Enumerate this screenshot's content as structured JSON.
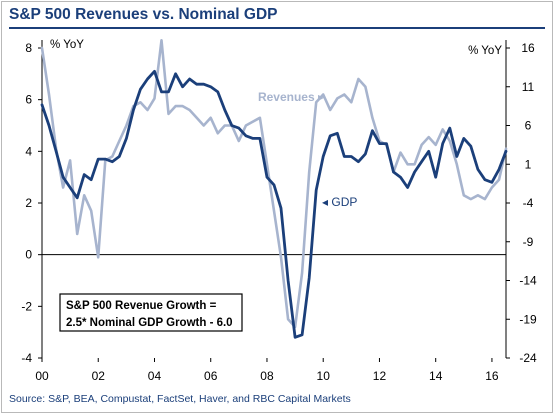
{
  "title": "S&P 500 Revenues vs. Nominal GDP",
  "source": "Source: S&P, BEA, Compustat, FactSet, Haver, and RBC Capital Markets",
  "chart_data": {
    "type": "line",
    "left_axis": {
      "label": "% YoY",
      "ticks": [
        "8",
        "6",
        "4",
        "2",
        "0",
        "-2",
        "-4"
      ],
      "range": [
        -4,
        8
      ]
    },
    "right_axis": {
      "label": "% YoY",
      "ticks": [
        "16",
        "11",
        "6",
        "1",
        "-4",
        "-9",
        "-14",
        "-19",
        "-24"
      ],
      "range": [
        -24,
        16
      ]
    },
    "x_ticks": [
      "00",
      "02",
      "04",
      "06",
      "08",
      "10",
      "12",
      "14",
      "16"
    ],
    "x_range": [
      2000,
      2016.5
    ],
    "series": [
      {
        "name": "GDP",
        "axis": "left",
        "color": "#1b3f7a",
        "x": [
          2000.0,
          2000.25,
          2000.5,
          2000.75,
          2001.0,
          2001.25,
          2001.5,
          2001.75,
          2002.0,
          2002.25,
          2002.5,
          2002.75,
          2003.0,
          2003.25,
          2003.5,
          2003.75,
          2004.0,
          2004.25,
          2004.5,
          2004.75,
          2005.0,
          2005.25,
          2005.5,
          2005.75,
          2006.0,
          2006.25,
          2006.5,
          2006.75,
          2007.0,
          2007.25,
          2007.5,
          2007.75,
          2008.0,
          2008.25,
          2008.5,
          2008.75,
          2009.0,
          2009.25,
          2009.5,
          2009.75,
          2010.0,
          2010.25,
          2010.5,
          2010.75,
          2011.0,
          2011.25,
          2011.5,
          2011.75,
          2012.0,
          2012.25,
          2012.5,
          2012.75,
          2013.0,
          2013.25,
          2013.5,
          2013.75,
          2014.0,
          2014.25,
          2014.5,
          2014.75,
          2015.0,
          2015.25,
          2015.5,
          2015.75,
          2016.0,
          2016.25,
          2016.5
        ],
        "values": [
          5.8,
          5.0,
          4.0,
          3.0,
          2.6,
          2.2,
          3.1,
          2.9,
          3.7,
          3.7,
          3.6,
          3.8,
          4.5,
          5.6,
          6.4,
          6.8,
          7.1,
          6.3,
          6.3,
          7.0,
          6.5,
          6.8,
          6.6,
          6.6,
          6.5,
          6.3,
          5.6,
          5.0,
          4.9,
          4.6,
          4.5,
          4.5,
          3.0,
          2.7,
          1.8,
          -1.0,
          -3.2,
          -3.1,
          -0.9,
          2.5,
          3.8,
          4.6,
          4.7,
          3.8,
          3.8,
          3.6,
          3.9,
          4.8,
          4.3,
          4.3,
          3.2,
          3.0,
          2.6,
          3.2,
          3.6,
          4.0,
          3.0,
          4.3,
          4.9,
          3.8,
          4.5,
          4.2,
          3.3,
          2.9,
          2.8,
          3.3,
          4.0
        ]
      },
      {
        "name": "Revenues",
        "axis": "right",
        "color": "#a7b4ce",
        "x": [
          2000.0,
          2000.25,
          2000.5,
          2000.75,
          2001.0,
          2001.25,
          2001.5,
          2001.75,
          2002.0,
          2002.25,
          2002.5,
          2002.75,
          2003.0,
          2003.25,
          2003.5,
          2003.75,
          2004.0,
          2004.25,
          2004.5,
          2004.75,
          2005.0,
          2005.25,
          2005.5,
          2005.75,
          2006.0,
          2006.25,
          2006.5,
          2006.75,
          2007.0,
          2007.25,
          2007.5,
          2007.75,
          2008.0,
          2008.25,
          2008.5,
          2008.75,
          2009.0,
          2009.25,
          2009.5,
          2009.75,
          2010.0,
          2010.25,
          2010.5,
          2010.75,
          2011.0,
          2011.25,
          2011.5,
          2011.75,
          2012.0,
          2012.25,
          2012.5,
          2012.75,
          2013.0,
          2013.25,
          2013.5,
          2013.75,
          2014.0,
          2014.25,
          2014.5,
          2014.75,
          2015.0,
          2015.25,
          2015.5,
          2015.75,
          2016.0,
          2016.25,
          2016.5
        ],
        "values": [
          16.0,
          10.0,
          3.0,
          -2.0,
          1.5,
          -8.0,
          -3.0,
          -5.0,
          -11.0,
          1.5,
          2.0,
          4.0,
          6.0,
          8.5,
          9.0,
          8.0,
          9.5,
          17.0,
          7.5,
          8.5,
          8.5,
          8.0,
          7.0,
          6.0,
          7.0,
          5.0,
          6.0,
          6.0,
          4.0,
          6.0,
          6.5,
          7.0,
          1.0,
          -5.0,
          -11.0,
          -19.0,
          -20.0,
          -13.0,
          0.0,
          9.0,
          10.0,
          8.0,
          9.5,
          10.0,
          9.0,
          12.0,
          11.0,
          7.0,
          4.0,
          3.5,
          0.0,
          2.5,
          1.0,
          1.0,
          3.5,
          4.5,
          3.5,
          5.5,
          4.0,
          1.0,
          -3.0,
          -3.5,
          -3.0,
          -3.5,
          -2.0,
          -1.0,
          3.0
        ]
      }
    ],
    "annotations": [
      {
        "text": "Revenues ▸",
        "series": "Revenues"
      },
      {
        "text": "◂ GDP",
        "series": "GDP"
      }
    ],
    "box_text": [
      "S&P 500 Revenue Growth =",
      "2.5* Nominal GDP Growth - 6.0"
    ],
    "grid": false
  }
}
